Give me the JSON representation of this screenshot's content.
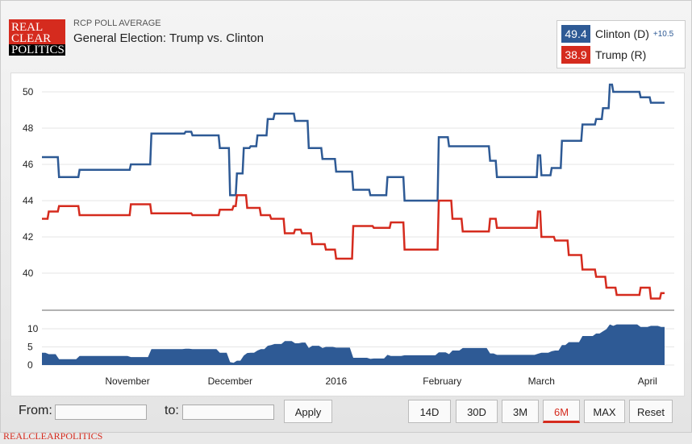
{
  "header": {
    "logo": [
      "REAL",
      "CLEAR",
      "POLITICS"
    ],
    "subtitle": "RCP POLL AVERAGE",
    "title": "General Election: Trump vs. Clinton"
  },
  "legend": {
    "items": [
      {
        "value": "49.4",
        "name": "Clinton (D)",
        "spread": "+10.5",
        "color": "#2e5a95"
      },
      {
        "value": "38.9",
        "name": "Trump (R)",
        "color": "#d52b1e"
      }
    ]
  },
  "chart_data": {
    "type": "line",
    "x_range": [
      "2015-10-07",
      "2016-04-06"
    ],
    "ylim": [
      38,
      51
    ],
    "yticks": [
      "50",
      "48",
      "46",
      "44",
      "42",
      "40"
    ],
    "xticks": [
      {
        "label": "November",
        "date": "2015-11-01"
      },
      {
        "label": "December",
        "date": "2015-12-01"
      },
      {
        "label": "2016",
        "date": "2016-01-01"
      },
      {
        "label": "February",
        "date": "2016-02-01"
      },
      {
        "label": "March",
        "date": "2016-03-01"
      },
      {
        "label": "April",
        "date": "2016-04-01"
      }
    ],
    "grid": true,
    "series": [
      {
        "name": "Clinton (D)",
        "color": "#2e5a95",
        "points": [
          [
            "2015-10-07",
            46.4
          ],
          [
            "2015-10-12",
            45.3
          ],
          [
            "2015-10-18",
            45.7
          ],
          [
            "2015-11-02",
            46.0
          ],
          [
            "2015-11-08",
            47.7
          ],
          [
            "2015-11-18",
            47.8
          ],
          [
            "2015-11-20",
            47.6
          ],
          [
            "2015-11-28",
            46.9
          ],
          [
            "2015-12-01",
            44.3
          ],
          [
            "2015-12-03",
            45.5
          ],
          [
            "2015-12-05",
            46.9
          ],
          [
            "2015-12-07",
            47.0
          ],
          [
            "2015-12-09",
            47.6
          ],
          [
            "2015-12-12",
            48.5
          ],
          [
            "2015-12-14",
            48.8
          ],
          [
            "2015-12-20",
            48.4
          ],
          [
            "2015-12-24",
            46.9
          ],
          [
            "2015-12-28",
            46.3
          ],
          [
            "2016-01-01",
            45.6
          ],
          [
            "2016-01-06",
            44.6
          ],
          [
            "2016-01-11",
            44.3
          ],
          [
            "2016-01-16",
            45.3
          ],
          [
            "2016-01-21",
            44.0
          ],
          [
            "2016-01-31",
            47.5
          ],
          [
            "2016-02-03",
            47.0
          ],
          [
            "2016-02-15",
            46.2
          ],
          [
            "2016-02-17",
            45.3
          ],
          [
            "2016-02-29",
            46.5
          ],
          [
            "2016-03-01",
            45.4
          ],
          [
            "2016-03-04",
            45.8
          ],
          [
            "2016-03-07",
            47.3
          ],
          [
            "2016-03-13",
            48.2
          ],
          [
            "2016-03-17",
            48.5
          ],
          [
            "2016-03-19",
            49.1
          ],
          [
            "2016-03-21",
            50.4
          ],
          [
            "2016-03-22",
            50.0
          ],
          [
            "2016-03-30",
            49.7
          ],
          [
            "2016-04-02",
            49.4
          ]
        ]
      },
      {
        "name": "Trump (R)",
        "color": "#d52b1e",
        "points": [
          [
            "2015-10-07",
            43.0
          ],
          [
            "2015-10-09",
            43.4
          ],
          [
            "2015-10-12",
            43.7
          ],
          [
            "2015-10-18",
            43.2
          ],
          [
            "2015-11-02",
            43.8
          ],
          [
            "2015-11-08",
            43.3
          ],
          [
            "2015-11-20",
            43.2
          ],
          [
            "2015-11-28",
            43.5
          ],
          [
            "2015-12-02",
            43.7
          ],
          [
            "2015-12-03",
            44.3
          ],
          [
            "2015-12-06",
            43.6
          ],
          [
            "2015-12-10",
            43.2
          ],
          [
            "2015-12-13",
            43.0
          ],
          [
            "2015-12-17",
            42.2
          ],
          [
            "2015-12-20",
            42.4
          ],
          [
            "2015-12-22",
            42.2
          ],
          [
            "2015-12-25",
            41.6
          ],
          [
            "2015-12-29",
            41.3
          ],
          [
            "2016-01-01",
            40.8
          ],
          [
            "2016-01-06",
            42.6
          ],
          [
            "2016-01-12",
            42.5
          ],
          [
            "2016-01-17",
            42.8
          ],
          [
            "2016-01-21",
            41.3
          ],
          [
            "2016-01-31",
            44.0
          ],
          [
            "2016-02-04",
            43.0
          ],
          [
            "2016-02-07",
            42.3
          ],
          [
            "2016-02-15",
            43.0
          ],
          [
            "2016-02-17",
            42.5
          ],
          [
            "2016-02-29",
            43.4
          ],
          [
            "2016-03-01",
            42.0
          ],
          [
            "2016-03-05",
            41.8
          ],
          [
            "2016-03-09",
            41.0
          ],
          [
            "2016-03-13",
            40.2
          ],
          [
            "2016-03-17",
            39.8
          ],
          [
            "2016-03-20",
            39.2
          ],
          [
            "2016-03-23",
            38.8
          ],
          [
            "2016-03-30",
            39.2
          ],
          [
            "2016-04-02",
            38.6
          ],
          [
            "2016-04-05",
            38.9
          ]
        ]
      }
    ],
    "spread_chart": {
      "type": "area",
      "ylim": [
        0,
        12
      ],
      "yticks": [
        "10",
        "5",
        "0"
      ],
      "color": "#2e5a95"
    }
  },
  "controls": {
    "from_label": "From:",
    "from_value": "",
    "to_label": "to:",
    "to_value": "",
    "apply": "Apply",
    "ranges": [
      "14D",
      "30D",
      "3M",
      "6M",
      "MAX",
      "Reset"
    ],
    "active_range": "6M"
  },
  "footer": {
    "brand": "REALCLEARPOLITICS"
  }
}
